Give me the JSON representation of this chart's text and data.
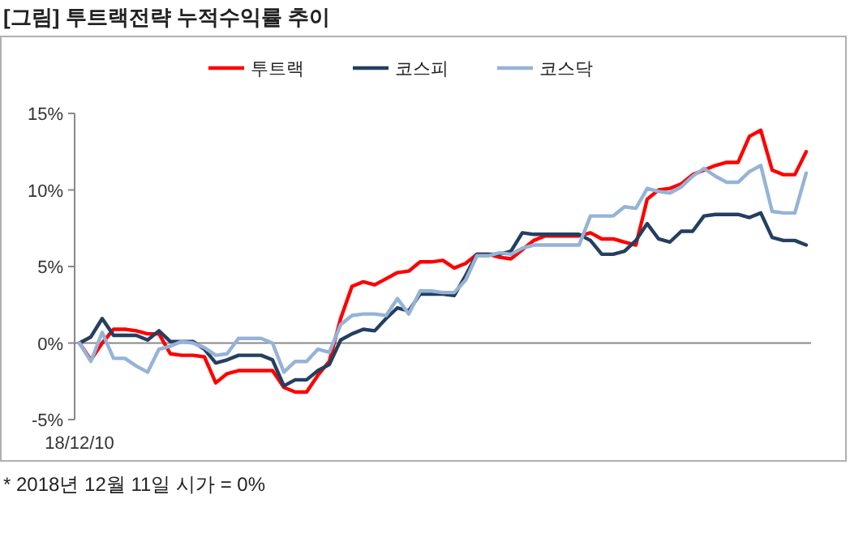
{
  "chart_data": {
    "type": "line",
    "title": "[그림] 투트랙전략 누적수익률 추이",
    "annotations": [
      "* 2018년 12월 11일 시가 = 0%"
    ],
    "categories": [
      "18/12/10",
      null,
      null,
      null,
      null,
      null,
      null,
      null,
      null,
      null,
      null,
      null,
      null,
      null,
      null,
      null,
      null,
      null,
      null,
      null,
      null,
      null,
      null,
      null,
      null,
      null,
      null,
      null,
      null,
      null,
      null,
      null,
      null,
      null,
      null,
      null,
      null,
      null,
      null,
      null,
      null,
      null,
      null,
      null,
      null,
      null,
      null,
      null,
      null,
      null,
      null,
      null,
      null,
      null,
      null,
      null,
      null,
      null,
      null,
      null,
      null,
      null,
      null,
      null,
      null
    ],
    "series": [
      {
        "name": "투트랙",
        "color": "#ff0000",
        "values": [
          0,
          -1.1,
          0,
          0.9,
          0.9,
          0.8,
          0.6,
          0.6,
          -0.7,
          -0.8,
          -0.8,
          -0.9,
          -2.6,
          -2.0,
          -1.8,
          -1.8,
          -1.8,
          -1.8,
          -2.9,
          -3.2,
          -3.2,
          -2.1,
          -1.2,
          1.6,
          3.7,
          4.0,
          3.8,
          4.2,
          4.6,
          4.7,
          5.3,
          5.3,
          5.4,
          4.9,
          5.2,
          5.8,
          5.8,
          5.6,
          5.5,
          6.1,
          6.7,
          7.0,
          7.0,
          7.0,
          7.0,
          7.2,
          6.8,
          6.8,
          6.6,
          6.4,
          9.4,
          10.0,
          10.1,
          10.4,
          11.0,
          11.3,
          11.6,
          11.8,
          11.8,
          13.5,
          13.9,
          11.3,
          11.0,
          11.0,
          12.5
        ]
      },
      {
        "name": "코스피",
        "color": "#243f60",
        "values": [
          0,
          0.4,
          1.6,
          0.5,
          0.5,
          0.5,
          0.2,
          0.8,
          0.1,
          0.1,
          0.1,
          -0.4,
          -1.3,
          -1.1,
          -0.8,
          -0.8,
          -0.8,
          -1.1,
          -2.8,
          -2.4,
          -2.4,
          -1.8,
          -1.4,
          0.2,
          0.6,
          0.9,
          0.8,
          1.6,
          2.3,
          2.1,
          3.2,
          3.2,
          3.2,
          3.1,
          4.4,
          5.8,
          5.8,
          5.8,
          6.0,
          7.2,
          7.1,
          7.1,
          7.1,
          7.1,
          7.1,
          6.7,
          5.8,
          5.8,
          6.0,
          6.7,
          7.8,
          6.8,
          6.6,
          7.3,
          7.3,
          8.3,
          8.4,
          8.4,
          8.4,
          8.2,
          8.5,
          6.9,
          6.7,
          6.7,
          6.4
        ]
      },
      {
        "name": "코스닥",
        "color": "#95b3d7",
        "values": [
          0,
          -1.2,
          0.7,
          -1.0,
          -1.0,
          -1.5,
          -1.9,
          -0.4,
          -0.2,
          0.1,
          0.0,
          -0.3,
          -0.8,
          -0.7,
          0.3,
          0.3,
          0.3,
          0,
          -1.9,
          -1.2,
          -1.2,
          -0.4,
          -0.6,
          1.2,
          1.8,
          1.9,
          1.9,
          1.8,
          2.9,
          1.9,
          3.4,
          3.4,
          3.3,
          3.3,
          4.1,
          5.7,
          5.7,
          5.9,
          5.8,
          6.2,
          6.4,
          6.4,
          6.4,
          6.4,
          6.4,
          8.3,
          8.3,
          8.3,
          8.9,
          8.8,
          10.1,
          9.9,
          9.8,
          10.2,
          10.9,
          11.4,
          10.9,
          10.5,
          10.5,
          11.2,
          11.6,
          8.6,
          8.5,
          8.5,
          11.1
        ]
      }
    ],
    "ylim": [
      -5,
      15
    ],
    "yticks": [
      {
        "value": -5,
        "label": "-5%"
      },
      {
        "value": 0,
        "label": "0%"
      },
      {
        "value": 5,
        "label": "5%"
      },
      {
        "value": 10,
        "label": "10%"
      },
      {
        "value": 15,
        "label": "15%"
      }
    ],
    "legend": "top"
  }
}
